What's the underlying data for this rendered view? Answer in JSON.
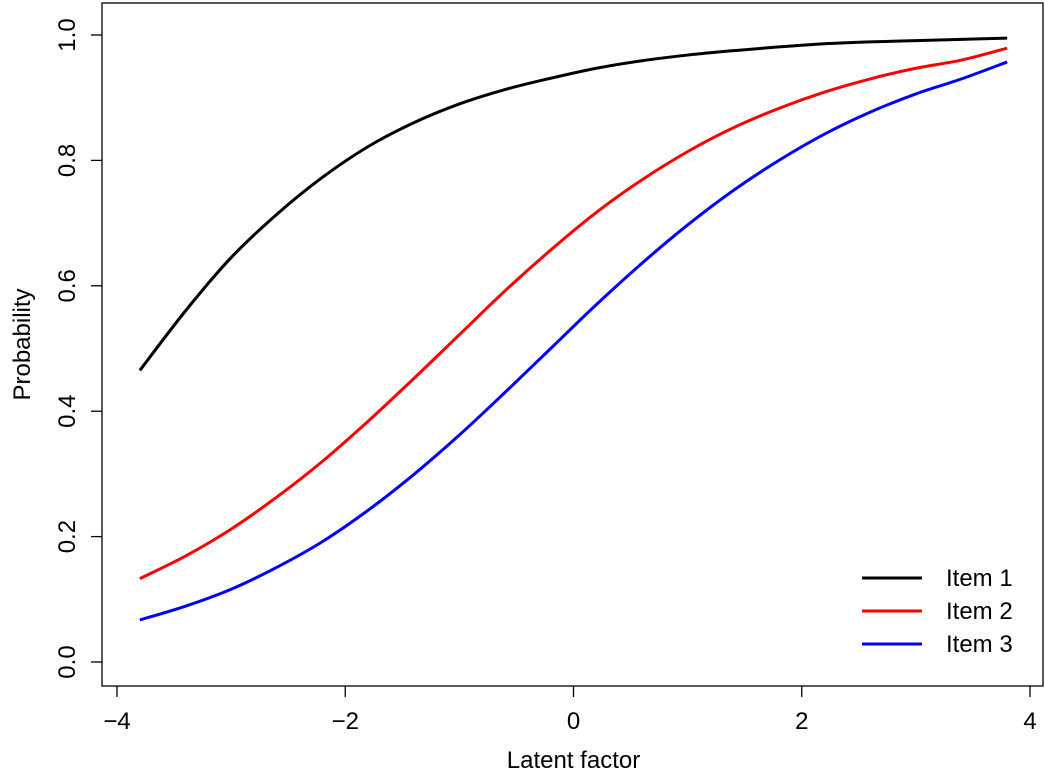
{
  "chart_data": {
    "type": "line",
    "title": "",
    "xlabel": "Latent factor",
    "ylabel": "Probability",
    "xlim": [
      -4,
      4
    ],
    "ylim": [
      0,
      1
    ],
    "x_ticks": [
      -4,
      -2,
      0,
      2,
      4
    ],
    "y_ticks": [
      0.0,
      0.2,
      0.4,
      0.6,
      0.8,
      1.0
    ],
    "x_tick_labels": [
      "−4",
      "−2",
      "0",
      "2",
      "4"
    ],
    "y_tick_labels": [
      "0.0",
      "0.2",
      "0.4",
      "0.6",
      "0.8",
      "1.0"
    ],
    "grid": false,
    "legend_position": "bottom-right",
    "series": [
      {
        "name": "Item 1",
        "color": "#000000",
        "x": [
          -3.8,
          -3.4,
          -3.0,
          -2.6,
          -2.2,
          -1.8,
          -1.4,
          -1.0,
          -0.6,
          -0.2,
          0.2,
          0.6,
          1.0,
          1.4,
          1.8,
          2.2,
          2.6,
          3.0,
          3.4,
          3.8
        ],
        "y": [
          0.465,
          0.56,
          0.645,
          0.714,
          0.773,
          0.822,
          0.86,
          0.89,
          0.913,
          0.931,
          0.947,
          0.959,
          0.968,
          0.975,
          0.981,
          0.986,
          0.989,
          0.991,
          0.993,
          0.995
        ]
      },
      {
        "name": "Item 2",
        "color": "#ff0000",
        "x": [
          -3.8,
          -3.4,
          -3.0,
          -2.6,
          -2.2,
          -1.8,
          -1.4,
          -1.0,
          -0.6,
          -0.2,
          0.2,
          0.6,
          1.0,
          1.4,
          1.8,
          2.2,
          2.6,
          3.0,
          3.4,
          3.8
        ],
        "y": [
          0.133,
          0.169,
          0.212,
          0.263,
          0.32,
          0.384,
          0.452,
          0.522,
          0.592,
          0.657,
          0.717,
          0.769,
          0.814,
          0.852,
          0.883,
          0.909,
          0.93,
          0.947,
          0.96,
          0.979
        ]
      },
      {
        "name": "Item 3",
        "color": "#0000ff",
        "x": [
          -3.8,
          -3.4,
          -3.0,
          -2.6,
          -2.2,
          -1.8,
          -1.4,
          -1.0,
          -0.6,
          -0.2,
          0.2,
          0.6,
          1.0,
          1.4,
          1.8,
          2.2,
          2.6,
          3.0,
          3.4,
          3.8
        ],
        "y": [
          0.067,
          0.089,
          0.116,
          0.151,
          0.192,
          0.242,
          0.299,
          0.362,
          0.43,
          0.5,
          0.57,
          0.636,
          0.697,
          0.752,
          0.8,
          0.842,
          0.877,
          0.906,
          0.93,
          0.957
        ]
      }
    ]
  }
}
